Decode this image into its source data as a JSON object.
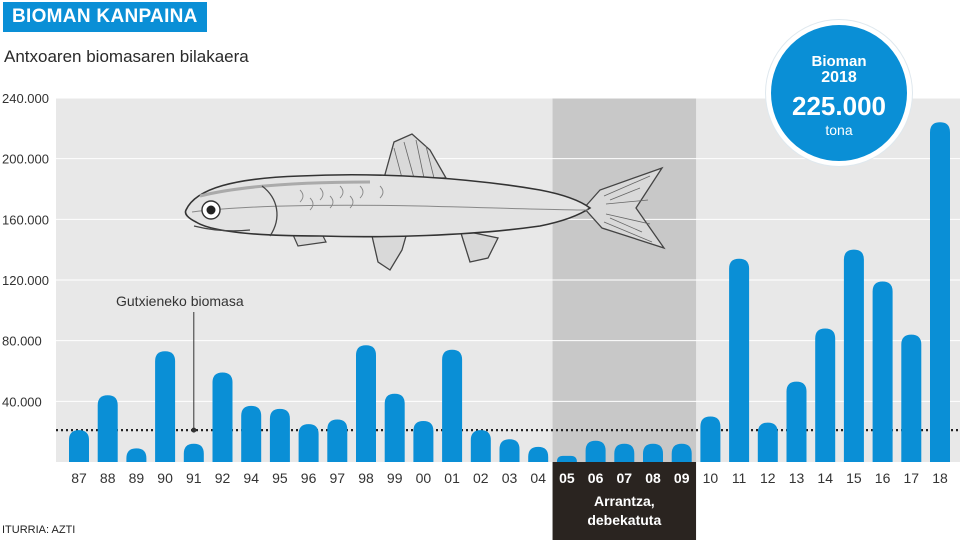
{
  "header": {
    "title": "BIOMAN KANPAINA",
    "subtitle": "Antxoaren biomasaren bilakaera",
    "source": "ITURRIA: AZTI"
  },
  "badge": {
    "line1": "Bioman",
    "line2": "2018",
    "value": "225.000",
    "unit": "tona"
  },
  "colors": {
    "bar": "#0a8fd6",
    "plot_bg": "#e8e8e8",
    "ban_bg": "#c8c8c8",
    "ban_label_bg": "#2a2420"
  },
  "chart_data": {
    "type": "bar",
    "title": "",
    "ylabel": "",
    "ylim": [
      0,
      240000
    ],
    "yticks": [
      40000,
      80000,
      120000,
      160000,
      200000,
      240000
    ],
    "ytick_labels": [
      "40.000",
      "80.000",
      "120.000",
      "160.000",
      "200.000",
      "240.000"
    ],
    "categories": [
      "87",
      "88",
      "89",
      "90",
      "91",
      "92",
      "94",
      "95",
      "96",
      "97",
      "98",
      "99",
      "00",
      "01",
      "02",
      "03",
      "04",
      "05",
      "06",
      "07",
      "08",
      "09",
      "10",
      "11",
      "12",
      "13",
      "14",
      "15",
      "16",
      "17",
      "18"
    ],
    "values": [
      21000,
      44000,
      9000,
      73000,
      12000,
      59000,
      37000,
      35000,
      25000,
      28000,
      77000,
      45000,
      27000,
      74000,
      21000,
      15000,
      10000,
      4000,
      14000,
      12000,
      12000,
      12000,
      30000,
      134000,
      26000,
      53000,
      88000,
      140000,
      119000,
      84000,
      224000
    ],
    "reference_line": {
      "label": "Gutxieneko biomasa",
      "value": 21000
    },
    "fishing_ban": {
      "from": "05",
      "to": "09",
      "label_line1": "Arrantza,",
      "label_line2": "debekatuta"
    }
  }
}
